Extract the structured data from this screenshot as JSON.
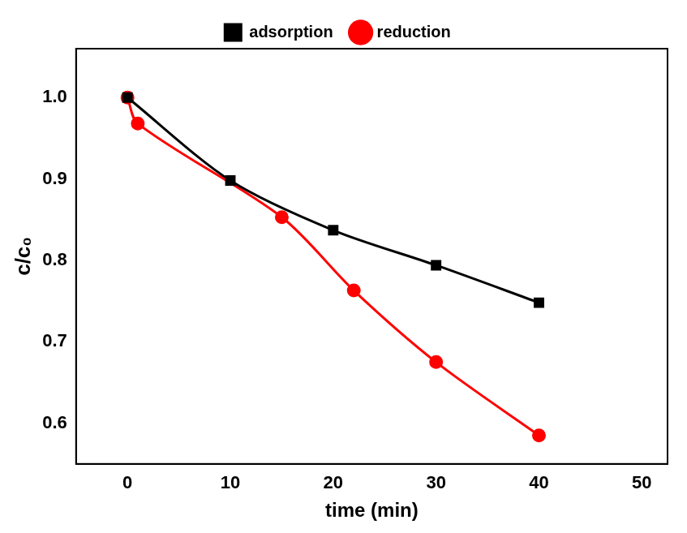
{
  "chart_data": {
    "type": "line",
    "x_label": "time (min)",
    "y_label": "c/c₀",
    "series": [
      {
        "name": "adsorption",
        "color": "#000000",
        "marker": "square",
        "x": [
          0,
          10,
          20,
          30,
          40
        ],
        "values": [
          1.0,
          0.898,
          0.837,
          0.794,
          0.748
        ]
      },
      {
        "name": "reduction",
        "color": "#ff0000",
        "marker": "circle",
        "x": [
          0,
          1,
          15,
          22,
          30,
          40
        ],
        "values": [
          1.0,
          0.968,
          0.853,
          0.763,
          0.675,
          0.585
        ]
      }
    ],
    "xlim": [
      -5,
      52.5
    ],
    "xticks": [
      0,
      10,
      20,
      30,
      40,
      50
    ],
    "ylim": [
      0.55,
      1.06
    ],
    "yticks": [
      0.6,
      0.7,
      0.8,
      0.9,
      {
        "value": 1,
        "label": "1.0"
      }
    ],
    "grid": false,
    "legend": "top"
  }
}
